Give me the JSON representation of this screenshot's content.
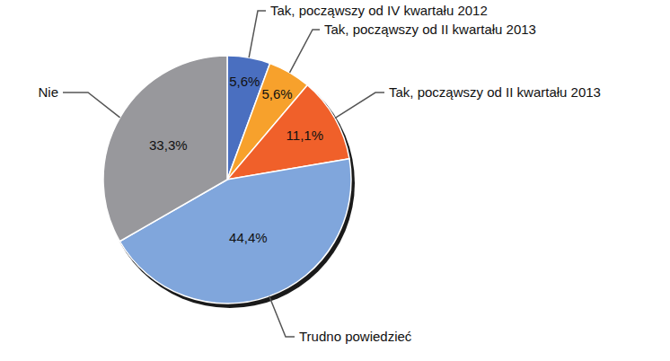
{
  "chart_data": {
    "type": "pie",
    "categories": [
      "Tak, począwszy od IV kwartału 2012",
      "Tak, począwszy od II kwartału 2013",
      "Tak, począwszy od II kwartału 2013",
      "Trudno powiedzieć",
      "Nie"
    ],
    "values": [
      5.6,
      5.6,
      11.1,
      44.4,
      33.3
    ],
    "value_labels": [
      "5,6%",
      "5,6%",
      "11,1%",
      "44,4%",
      "33,3%"
    ],
    "colors": [
      "#4a6fc0",
      "#f7a12c",
      "#f0602a",
      "#80a6dc",
      "#98989c"
    ],
    "data_labels": true
  }
}
